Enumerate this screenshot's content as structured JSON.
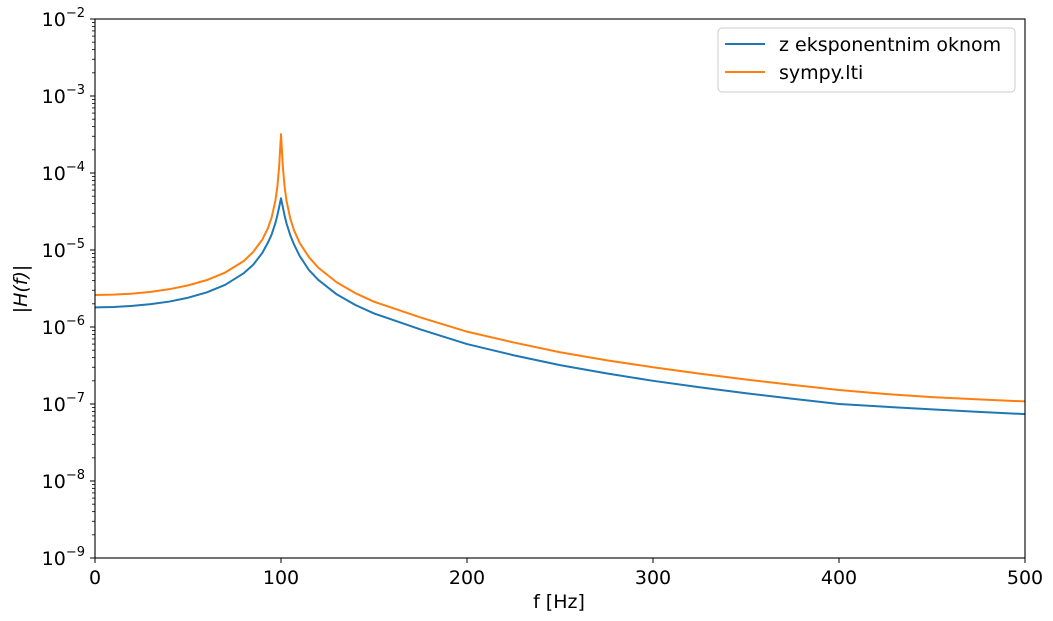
{
  "chart_data": {
    "type": "line",
    "title": "",
    "xlabel": "f [Hz]",
    "ylabel": "|H(f)|",
    "yscale": "log",
    "xlim": [
      0,
      500
    ],
    "ylim": [
      1e-09,
      0.01
    ],
    "grid": false,
    "legend_position": "upper right",
    "x_ticks": [
      0,
      100,
      200,
      300,
      400,
      500
    ],
    "y_ticks": [
      {
        "value": 0.01,
        "exp": "−2"
      },
      {
        "value": 0.001,
        "exp": "−3"
      },
      {
        "value": 0.0001,
        "exp": "−4"
      },
      {
        "value": 1e-05,
        "exp": "−5"
      },
      {
        "value": 1e-06,
        "exp": "−6"
      },
      {
        "value": 1e-07,
        "exp": "−7"
      },
      {
        "value": 1e-08,
        "exp": "−8"
      },
      {
        "value": 1e-09,
        "exp": "−9"
      }
    ],
    "x": [
      0,
      10,
      20,
      30,
      40,
      50,
      60,
      70,
      80,
      85,
      90,
      93,
      95,
      97,
      98,
      99,
      100,
      101,
      102,
      103,
      105,
      107,
      110,
      115,
      120,
      130,
      140,
      150,
      175,
      200,
      225,
      250,
      275,
      300,
      325,
      350,
      375,
      400,
      425,
      450,
      475,
      500
    ],
    "series": [
      {
        "name": "z eksponentnim oknom",
        "color": "#1f77b4",
        "values": [
          1.8e-06,
          1.82e-06,
          1.88e-06,
          1.98e-06,
          2.14e-06,
          2.4e-06,
          2.81e-06,
          3.53e-06,
          5e-06,
          6.4e-06,
          9.2e-06,
          1.25e-05,
          1.6e-05,
          2.25e-05,
          2.8e-05,
          3.6e-05,
          4.7e-05,
          3.6e-05,
          2.75e-05,
          2.2e-05,
          1.55e-05,
          1.18e-05,
          8.4e-06,
          5.5e-06,
          4.1e-06,
          2.65e-06,
          1.93e-06,
          1.5e-06,
          9.3e-07,
          6e-07,
          4.3e-07,
          3.2e-07,
          2.5e-07,
          2e-07,
          1.65e-07,
          1.38e-07,
          1.17e-07,
          1e-07,
          9.2e-08,
          8.5e-08,
          7.9e-08,
          7.4e-08
        ]
      },
      {
        "name": "sympy.lti",
        "color": "#ff7f0e",
        "values": [
          2.6e-06,
          2.63e-06,
          2.71e-06,
          2.86e-06,
          3.1e-06,
          3.47e-06,
          4.06e-06,
          5.1e-06,
          7.2e-06,
          9.4e-06,
          1.37e-05,
          1.93e-05,
          2.67e-05,
          4.4e-05,
          6.5e-05,
          0.00012,
          0.00032,
          0.00012,
          6.4e-05,
          4.3e-05,
          2.55e-05,
          1.8e-05,
          1.24e-05,
          8.1e-06,
          5.9e-06,
          3.8e-06,
          2.75e-06,
          2.13e-06,
          1.33e-06,
          8.7e-07,
          6.3e-07,
          4.7e-07,
          3.7e-07,
          3e-07,
          2.48e-07,
          2.08e-07,
          1.77e-07,
          1.52e-07,
          1.35e-07,
          1.23e-07,
          1.15e-07,
          1.08e-07
        ]
      }
    ]
  }
}
